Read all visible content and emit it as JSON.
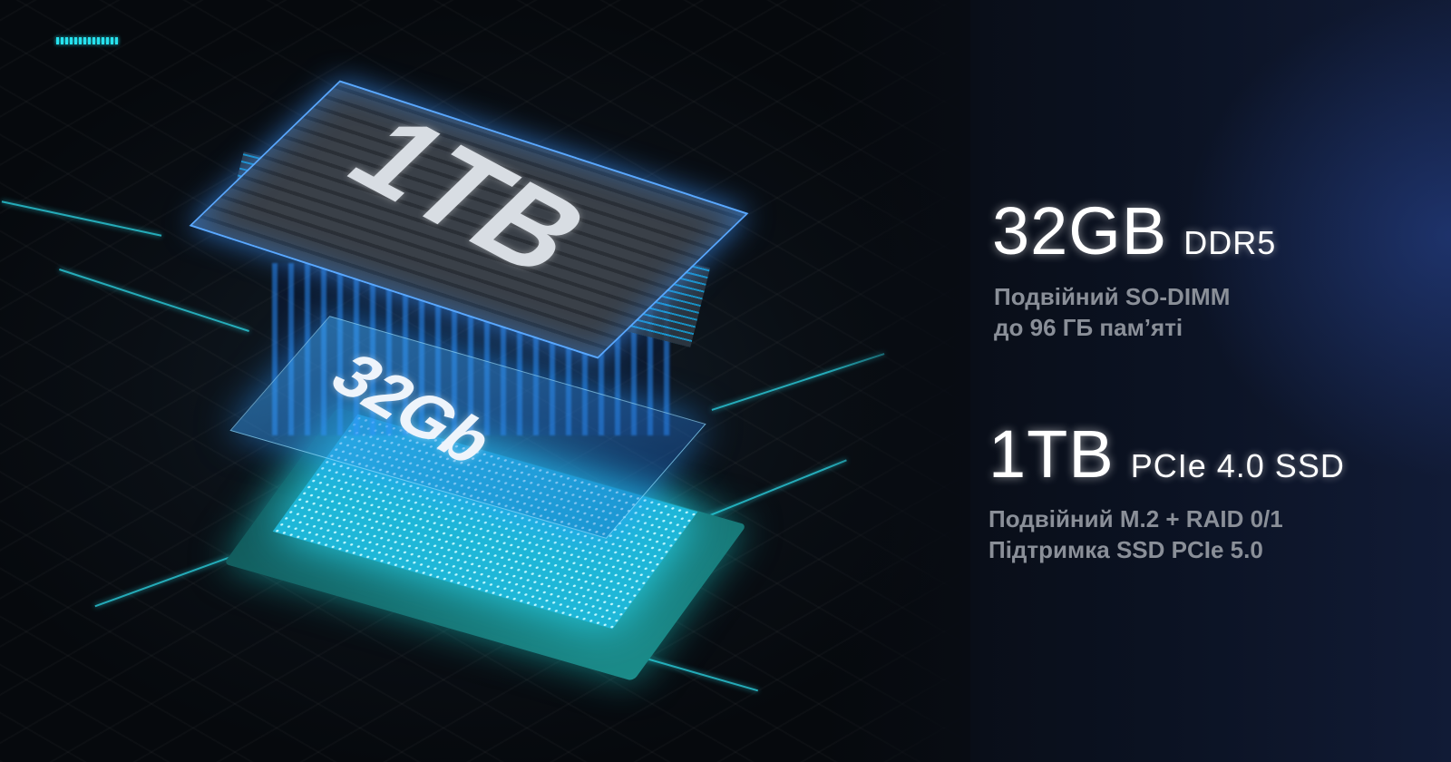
{
  "indicator": {
    "segments": 14,
    "color": "#27e2ee"
  },
  "illustration": {
    "storage_label": "1TB",
    "memory_label": "32Gb"
  },
  "memory": {
    "amount": "32GB",
    "type": "DDR5",
    "lines": [
      "Подвійний SO-DIMM",
      "до 96 ГБ пам’яті"
    ]
  },
  "storage": {
    "amount": "1TB",
    "type": "PCIe 4.0 SSD",
    "lines": [
      "Подвійний M.2 + RAID 0/1",
      "Підтримка SSD PCIe 5.0"
    ]
  },
  "colors": {
    "accent": "#2fe0f0",
    "text": "#ffffff",
    "subtext": "#8a8f98"
  }
}
